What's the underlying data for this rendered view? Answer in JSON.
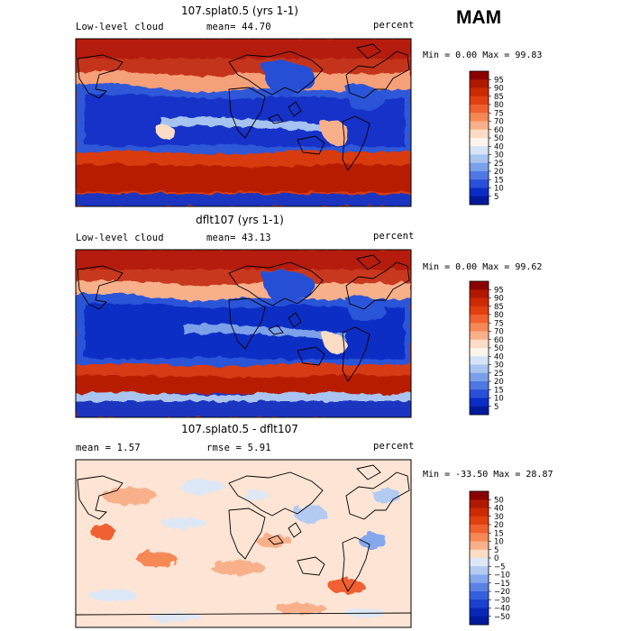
{
  "season": "MAM",
  "panels": [
    {
      "title": "107.splat0.5 (yrs 1-1)",
      "left_label": "Low-level cloud",
      "mean_text": "mean=  44.70",
      "units": "percent",
      "minmax": "Min =   0.00 Max =  99.83",
      "colorbar_type": "cloud"
    },
    {
      "title": "dflt107 (yrs 1-1)",
      "left_label": "Low-level cloud",
      "mean_text": "mean=  43.13",
      "units": "percent",
      "minmax": "Min =   0.00 Max =  99.62",
      "colorbar_type": "cloud"
    },
    {
      "title": "107.splat0.5 - dflt107",
      "left_label": "mean =   1.57",
      "mean_text": "rmse =   5.91",
      "units": "percent",
      "minmax": "Min = -33.50 Max =  28.87",
      "colorbar_type": "diff"
    }
  ],
  "colorbars": {
    "cloud": {
      "levels": [
        "95",
        "90",
        "85",
        "80",
        "75",
        "70",
        "60",
        "50",
        "40",
        "30",
        "25",
        "20",
        "15",
        "10",
        "5"
      ],
      "colors": [
        "#8b0000",
        "#b01800",
        "#cc2a00",
        "#e04010",
        "#f06030",
        "#f58855",
        "#f8b08a",
        "#fcdcc5",
        "#fdf5ea",
        "#d4e4f6",
        "#a9c4f0",
        "#7ba0ea",
        "#4f78e2",
        "#2850d8",
        "#0c2cc6",
        "#001a9c"
      ]
    },
    "diff": {
      "levels": [
        "50",
        "40",
        "30",
        "20",
        "15",
        "10",
        "5",
        "0",
        "−5",
        "−10",
        "−15",
        "−20",
        "−30",
        "−40",
        "−50"
      ],
      "colors": [
        "#8b0000",
        "#b01800",
        "#cc2a00",
        "#e04010",
        "#f06030",
        "#f58855",
        "#f8b08a",
        "#fcdcc5",
        "#dde8f7",
        "#b3cbf2",
        "#85a7ec",
        "#5a82e4",
        "#3460dc",
        "#1a40d0",
        "#0a28b8",
        "#001a9c"
      ]
    }
  },
  "chart_data": [
    {
      "type": "heatmap",
      "title": "107.splat0.5 (yrs 1-1)",
      "variable": "Low-level cloud",
      "units": "percent",
      "mean": 44.7,
      "min": 0.0,
      "max": 99.83,
      "season": "MAM"
    },
    {
      "type": "heatmap",
      "title": "dflt107 (yrs 1-1)",
      "variable": "Low-level cloud",
      "units": "percent",
      "mean": 43.13,
      "min": 0.0,
      "max": 99.62,
      "season": "MAM"
    },
    {
      "type": "heatmap",
      "title": "107.splat0.5 - dflt107",
      "units": "percent",
      "mean": 1.57,
      "rmse": 5.91,
      "min": -33.5,
      "max": 28.87,
      "season": "MAM"
    }
  ]
}
